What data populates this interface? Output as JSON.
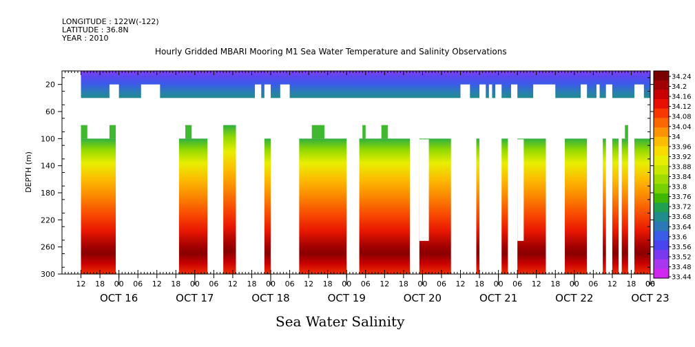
{
  "header": {
    "longitude": "LONGITUDE : 122W(-122)",
    "latitude": "LATITUDE : 36.8N",
    "year": "YEAR : 2010"
  },
  "chart_data": {
    "type": "heatmap",
    "title": "Hourly Gridded MBARI Mooring M1 Sea Water Temperature and Salinity Observations",
    "ylabel": "DEPTH (m)",
    "xlabel": "Sea Water Salinity",
    "ylim": [
      300,
      0
    ],
    "y_ticks": [
      20,
      60,
      100,
      140,
      180,
      220,
      260,
      300
    ],
    "x_range_hours": [
      0,
      186
    ],
    "x_hour_ticks": [
      "12",
      "18",
      "00",
      "06",
      "12",
      "18",
      "00",
      "06",
      "12",
      "18",
      "00",
      "06",
      "12",
      "18",
      "00",
      "06",
      "12",
      "18",
      "00",
      "06",
      "12",
      "18",
      "00",
      "06",
      "12",
      "18",
      "00",
      "06",
      "12",
      "18",
      "00",
      "06"
    ],
    "x_day_labels": [
      "OCT 16",
      "OCT 17",
      "OCT 18",
      "OCT 19",
      "OCT 20",
      "OCT 21",
      "OCT 22",
      "OCT 23"
    ],
    "colorbar": {
      "levels": [
        "34.24",
        "34.2",
        "34.16",
        "34.12",
        "34.08",
        "34.04",
        "34",
        "33.96",
        "33.92",
        "33.88",
        "33.84",
        "33.8",
        "33.76",
        "33.72",
        "33.68",
        "33.64",
        "33.6",
        "33.56",
        "33.52",
        "33.48",
        "33.44"
      ],
      "colors": [
        "#7a0000",
        "#a00000",
        "#c80000",
        "#e81000",
        "#f83800",
        "#fa6800",
        "#fb9400",
        "#fcbc00",
        "#f8dc00",
        "#e8ee00",
        "#c8e800",
        "#a0dc00",
        "#78d000",
        "#40b800",
        "#20a050",
        "#208c8c",
        "#2a78b4",
        "#3a5ce8",
        "#4a44f0",
        "#7a38f0",
        "#a838f0",
        "#d028f0"
      ]
    },
    "surface_gaps_hours": [
      [
        15,
        18
      ],
      [
        25,
        31
      ],
      [
        61,
        63
      ],
      [
        64,
        66
      ],
      [
        69,
        72
      ],
      [
        126,
        129
      ],
      [
        132,
        134
      ],
      [
        135,
        136
      ],
      [
        137,
        139
      ],
      [
        142,
        144
      ],
      [
        149,
        156
      ],
      [
        164,
        166
      ],
      [
        169,
        170
      ],
      [
        172,
        174
      ],
      [
        181,
        184
      ]
    ],
    "deep_segments": [
      {
        "h": [
          6,
          17
        ],
        "top_fill": 100,
        "notch": [
          [
            6,
            8,
            80
          ],
          [
            10,
            15,
            100
          ],
          [
            15,
            17,
            80
          ]
        ]
      },
      {
        "h": [
          37,
          46
        ],
        "top_fill": 100,
        "notch": [
          [
            37,
            39,
            100
          ],
          [
            39,
            41,
            80
          ],
          [
            41,
            42,
            100
          ],
          [
            42,
            46,
            100
          ]
        ]
      },
      {
        "h": [
          51,
          55
        ],
        "top_fill": 80
      },
      {
        "h": [
          64,
          66
        ],
        "top_fill": 100
      },
      {
        "h": [
          75,
          90
        ],
        "top_fill": 100,
        "notch": [
          [
            79,
            83,
            80
          ]
        ]
      },
      {
        "h": [
          94,
          110
        ],
        "top_fill": 100,
        "notch": [
          [
            95,
            96,
            80
          ],
          [
            101,
            103,
            80
          ]
        ]
      },
      {
        "h": [
          113,
          123
        ],
        "top_fill": 100,
        "hole": [
          [
            113,
            116,
            100,
            250
          ]
        ]
      },
      {
        "h": [
          131,
          132
        ],
        "top_fill": 100
      },
      {
        "h": [
          139,
          141
        ],
        "top_fill": 100
      },
      {
        "h": [
          144,
          153
        ],
        "top_fill": 100,
        "hole": [
          [
            144,
            146,
            100,
            250
          ]
        ]
      },
      {
        "h": [
          159,
          166
        ],
        "top_fill": 100
      },
      {
        "h": [
          171,
          172
        ],
        "top_fill": 100
      },
      {
        "h": [
          174,
          176
        ],
        "top_fill": 100
      },
      {
        "h": [
          177,
          179
        ],
        "top_fill": 100,
        "notch": [
          [
            178,
            179,
            80
          ]
        ]
      },
      {
        "h": [
          181,
          188
        ],
        "top_fill": 100
      }
    ]
  }
}
